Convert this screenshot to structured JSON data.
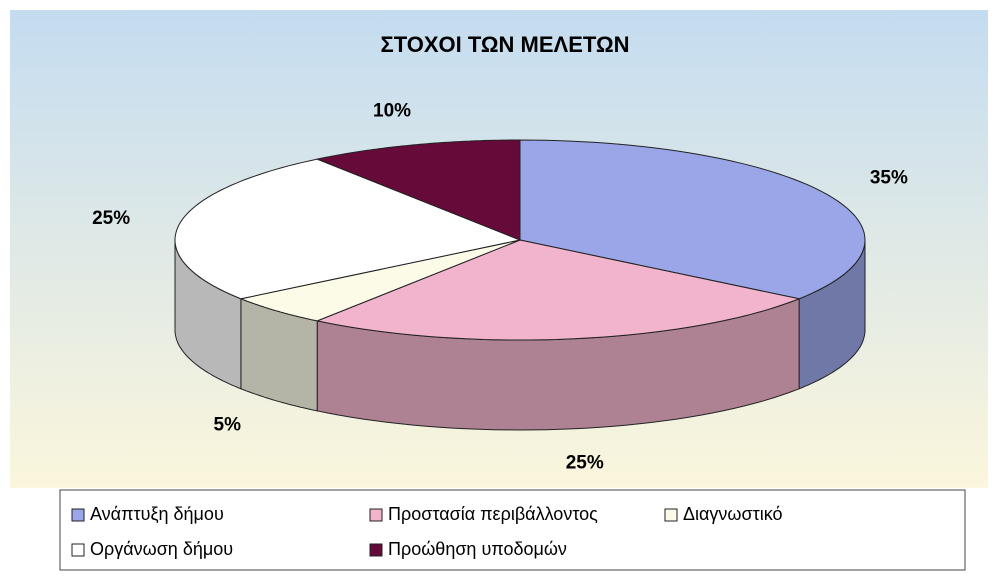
{
  "chart_data": {
    "type": "pie3d",
    "title": "ΣΤΟΧΟΙ ΤΩΝ ΜΕΛΕΤΩΝ",
    "categories": [
      "Ανάπτυξη δήμου",
      "Προστασία περιβάλλοντος",
      "Διαγνωστικό",
      "Οργάνωση δήμου",
      "Προώθηση υποδομών"
    ],
    "values": [
      35,
      25,
      5,
      25,
      10
    ],
    "value_labels": [
      "35%",
      "25%",
      "5%",
      "25%",
      "10%"
    ],
    "colors": [
      "#9aa6e8",
      "#f2b4cc",
      "#fbfbe8",
      "#ffffff",
      "#660a3a"
    ],
    "legend": "bottom"
  }
}
